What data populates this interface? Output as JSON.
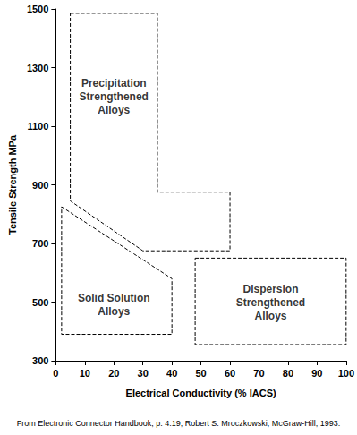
{
  "chart_data": {
    "type": "region",
    "x_label": "Electrical Conductivity (% IACS)",
    "y_label": "Tensile Strength MPa",
    "source": "From Electronic Connector Handbook, p. 4.19, Robert S. Mroczkowski, McGraw-Hill, 1993.",
    "xlim": [
      0,
      100
    ],
    "xticks": [
      0,
      10,
      20,
      30,
      40,
      50,
      60,
      70,
      80,
      90,
      100
    ],
    "ylim": [
      300,
      1500
    ],
    "yticks": [
      300,
      500,
      700,
      900,
      1100,
      1300,
      1500
    ],
    "grid": false,
    "line_style": "dashed",
    "color": "#000000",
    "regions": [
      {
        "name": "Precipitation\nStrengthened\nAlloys",
        "x": [
          5,
          35,
          35,
          60,
          60,
          30,
          5,
          5
        ],
        "y": [
          1485,
          1485,
          875,
          875,
          675,
          675,
          845,
          1485
        ],
        "label_x": 20,
        "label_y": 1200
      },
      {
        "name": "Solid Solution\nAlloys",
        "x": [
          2,
          40,
          40,
          2,
          2
        ],
        "y": [
          825,
          580,
          390,
          390,
          825
        ],
        "label_x": 20,
        "label_y": 490
      },
      {
        "name": "Dispersion\nStrengthened\nAlloys",
        "x": [
          48,
          100,
          100,
          48,
          48
        ],
        "y": [
          650,
          650,
          355,
          355,
          650
        ],
        "label_x": 74,
        "label_y": 500
      }
    ]
  }
}
